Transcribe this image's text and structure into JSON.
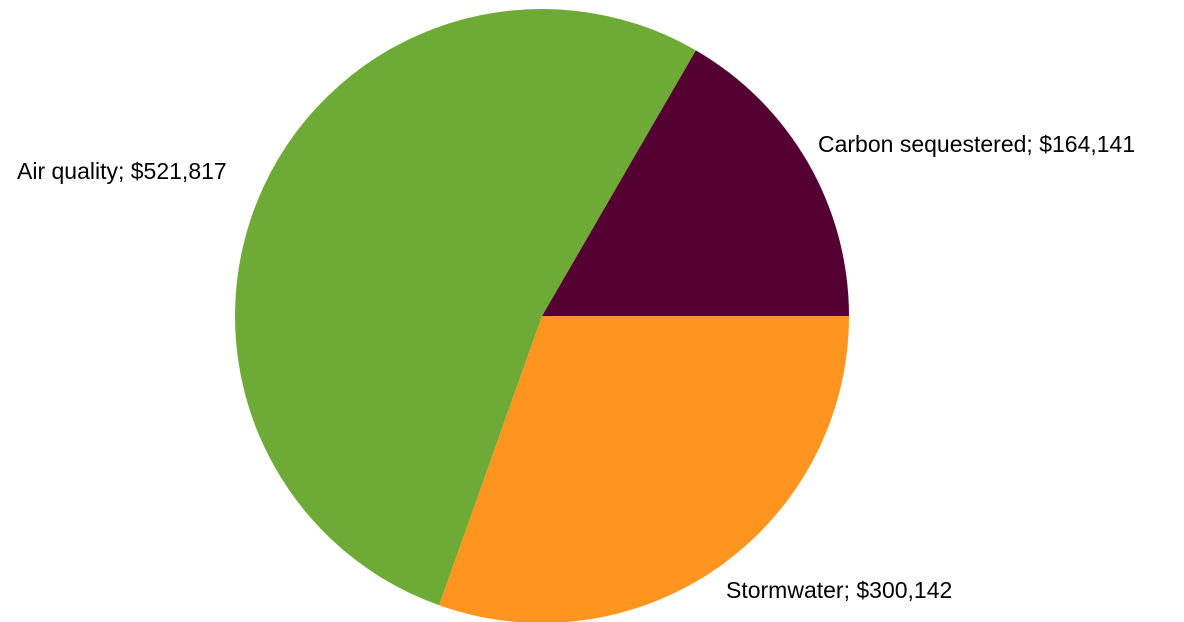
{
  "chart_data": {
    "type": "pie",
    "title": "",
    "slices": [
      {
        "label": "Carbon sequestered; $164,141",
        "name": "Carbon sequestered",
        "value": 164141,
        "color": "#550033"
      },
      {
        "label": "Stormwater; $300,142",
        "name": "Stormwater",
        "value": 300142,
        "color": "#ff951f"
      },
      {
        "label": "Air quality; $521,817",
        "name": "Air quality",
        "value": 521817,
        "color": "#6eaa36"
      }
    ],
    "start_angle_deg": 0,
    "direction": "clockwise-on-screen",
    "legend": "none",
    "labels": "outside"
  }
}
